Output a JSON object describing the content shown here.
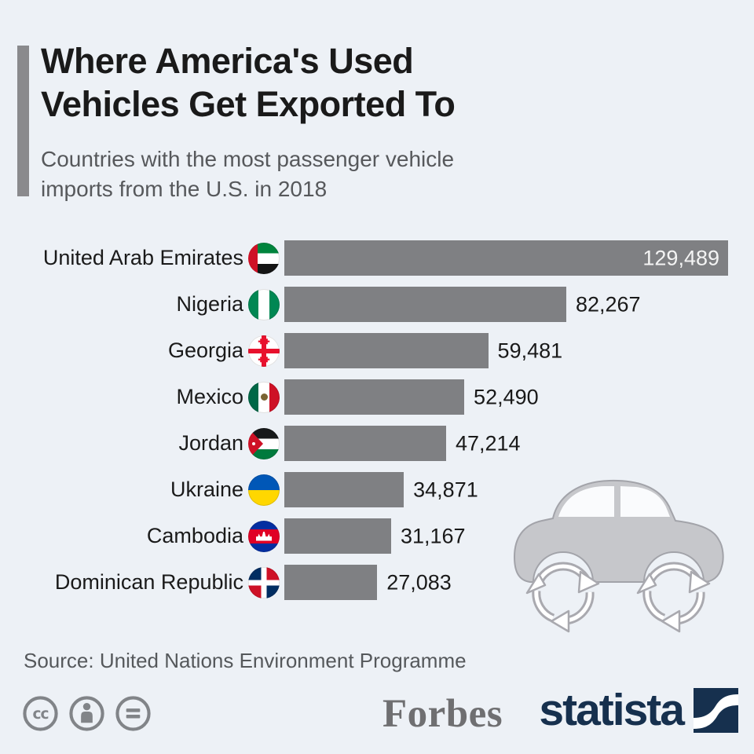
{
  "header": {
    "title_line1": "Where America's Used",
    "title_line2": "Vehicles Get Exported To",
    "subtitle_line1": "Countries with the most passenger vehicle",
    "subtitle_line2": "imports from the U.S. in 2018"
  },
  "chart_data": {
    "type": "bar",
    "orientation": "horizontal",
    "title": "Where America's Used Vehicles Get Exported To",
    "subtitle": "Countries with the most passenger vehicle imports from the U.S. in 2018",
    "categories": [
      "United Arab Emirates",
      "Nigeria",
      "Georgia",
      "Mexico",
      "Jordan",
      "Ukraine",
      "Cambodia",
      "Dominican Republic"
    ],
    "values": [
      129489,
      82267,
      59481,
      52490,
      47214,
      34871,
      31167,
      27083
    ],
    "value_labels": [
      "129,489",
      "82,267",
      "59,481",
      "52,490",
      "47,214",
      "34,871",
      "31,167",
      "27,083"
    ],
    "flags": [
      "uae",
      "nigeria",
      "georgia",
      "mexico",
      "jordan",
      "ukraine",
      "cambodia",
      "dominican-republic"
    ],
    "xlim": [
      0,
      129489
    ],
    "bar_color": "#7f8083",
    "grid": false,
    "legend": false,
    "value_label_position": "largest bar: inside right (white); others: outside right (black)"
  },
  "footer": {
    "source": "Source: United Nations Environment Programme",
    "forbes_logo_text": "Forbes",
    "statista_logo_text": "statista"
  },
  "colors": {
    "background": "#edf1f6",
    "bar": "#7f8083",
    "title_text": "#1a1a1a",
    "subtitle_text": "#56585b",
    "statista_navy": "#16304e",
    "forbes_gray": "#6f6f71",
    "license_icon_gray": "#818488",
    "car_gray": "#c6c7cb"
  }
}
